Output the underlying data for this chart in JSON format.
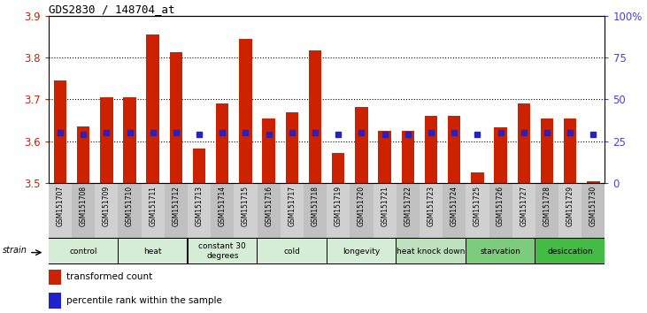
{
  "title": "GDS2830 / 148704_at",
  "samples": [
    "GSM151707",
    "GSM151708",
    "GSM151709",
    "GSM151710",
    "GSM151711",
    "GSM151712",
    "GSM151713",
    "GSM151714",
    "GSM151715",
    "GSM151716",
    "GSM151717",
    "GSM151718",
    "GSM151719",
    "GSM151720",
    "GSM151721",
    "GSM151722",
    "GSM151723",
    "GSM151724",
    "GSM151725",
    "GSM151726",
    "GSM151727",
    "GSM151728",
    "GSM151729",
    "GSM151730"
  ],
  "red_values": [
    3.745,
    3.635,
    3.705,
    3.705,
    3.855,
    3.812,
    3.582,
    3.69,
    3.845,
    3.655,
    3.67,
    3.816,
    3.572,
    3.682,
    3.625,
    3.625,
    3.66,
    3.66,
    3.525,
    3.633,
    3.69,
    3.655,
    3.655,
    3.505
  ],
  "blue_pct": [
    30,
    29,
    30,
    30,
    30,
    30,
    29,
    30,
    30,
    29,
    30,
    30,
    29,
    30,
    29,
    29,
    30,
    30,
    29,
    30,
    30,
    30,
    30,
    29
  ],
  "groups": [
    {
      "label": "control",
      "start": 0,
      "end": 2,
      "color": "#d5ecd5"
    },
    {
      "label": "heat",
      "start": 3,
      "end": 5,
      "color": "#d5ecd5"
    },
    {
      "label": "constant 30\ndegrees",
      "start": 6,
      "end": 8,
      "color": "#d5ecd5"
    },
    {
      "label": "cold",
      "start": 9,
      "end": 11,
      "color": "#d5ecd5"
    },
    {
      "label": "longevity",
      "start": 12,
      "end": 14,
      "color": "#d5ecd5"
    },
    {
      "label": "heat knock down",
      "start": 15,
      "end": 17,
      "color": "#bde0bd"
    },
    {
      "label": "starvation",
      "start": 18,
      "end": 20,
      "color": "#7dcc7d"
    },
    {
      "label": "desiccation",
      "start": 21,
      "end": 23,
      "color": "#44bb44"
    }
  ],
  "ylim_left": [
    3.5,
    3.9
  ],
  "ylim_right": [
    0,
    100
  ],
  "yticks_left": [
    3.5,
    3.6,
    3.7,
    3.8,
    3.9
  ],
  "yticks_right": [
    0,
    25,
    50,
    75,
    100
  ],
  "bar_color": "#cc2200",
  "dot_color": "#2222cc",
  "bg_color": "#ffffff",
  "tick_label_color_left": "#cc2200",
  "tick_label_color_right": "#4444cc",
  "name_bg_even": "#d0d0d0",
  "name_bg_odd": "#c0c0c0"
}
